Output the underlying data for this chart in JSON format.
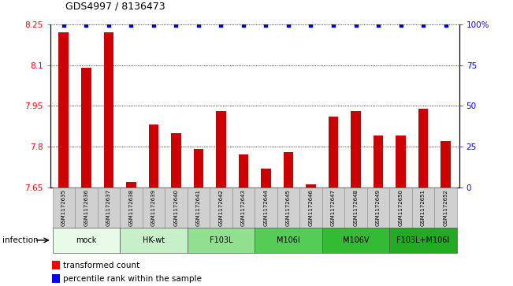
{
  "title": "GDS4997 / 8136473",
  "samples": [
    "GSM1172635",
    "GSM1172636",
    "GSM1172637",
    "GSM1172638",
    "GSM1172639",
    "GSM1172640",
    "GSM1172641",
    "GSM1172642",
    "GSM1172643",
    "GSM1172644",
    "GSM1172645",
    "GSM1172646",
    "GSM1172647",
    "GSM1172648",
    "GSM1172649",
    "GSM1172650",
    "GSM1172651",
    "GSM1172652"
  ],
  "bar_values": [
    8.22,
    8.09,
    8.22,
    7.67,
    7.88,
    7.85,
    7.79,
    7.93,
    7.77,
    7.72,
    7.78,
    7.66,
    7.91,
    7.93,
    7.84,
    7.84,
    7.94,
    7.82
  ],
  "groups": [
    {
      "label": "mock",
      "start": 0,
      "end": 3,
      "color": "#e8fae8"
    },
    {
      "label": "HK-wt",
      "start": 3,
      "end": 6,
      "color": "#c8f0c8"
    },
    {
      "label": "F103L",
      "start": 6,
      "end": 9,
      "color": "#90e090"
    },
    {
      "label": "M106I",
      "start": 9,
      "end": 12,
      "color": "#55cc55"
    },
    {
      "label": "M106V",
      "start": 12,
      "end": 15,
      "color": "#33bb33"
    },
    {
      "label": "F103L+M106I",
      "start": 15,
      "end": 18,
      "color": "#22aa22"
    }
  ],
  "ymin": 7.65,
  "ymax": 8.25,
  "yticks_left": [
    7.65,
    7.8,
    7.95,
    8.1,
    8.25
  ],
  "ytick_labels_left": [
    "7.65",
    "7.8",
    "7.95",
    "8.1",
    "8.25"
  ],
  "yticks_right": [
    0,
    25,
    50,
    75,
    100
  ],
  "ytick_labels_right": [
    "0",
    "25",
    "50",
    "75",
    "100%"
  ],
  "bar_color": "#cc0000",
  "dot_color": "#0000cc",
  "bar_width": 0.45,
  "xtick_bg_color": "#d0d0d0",
  "xtick_border_color": "#888888",
  "legend_red": "transformed count",
  "legend_blue": "percentile rank within the sample",
  "xlabel_group": "infection"
}
